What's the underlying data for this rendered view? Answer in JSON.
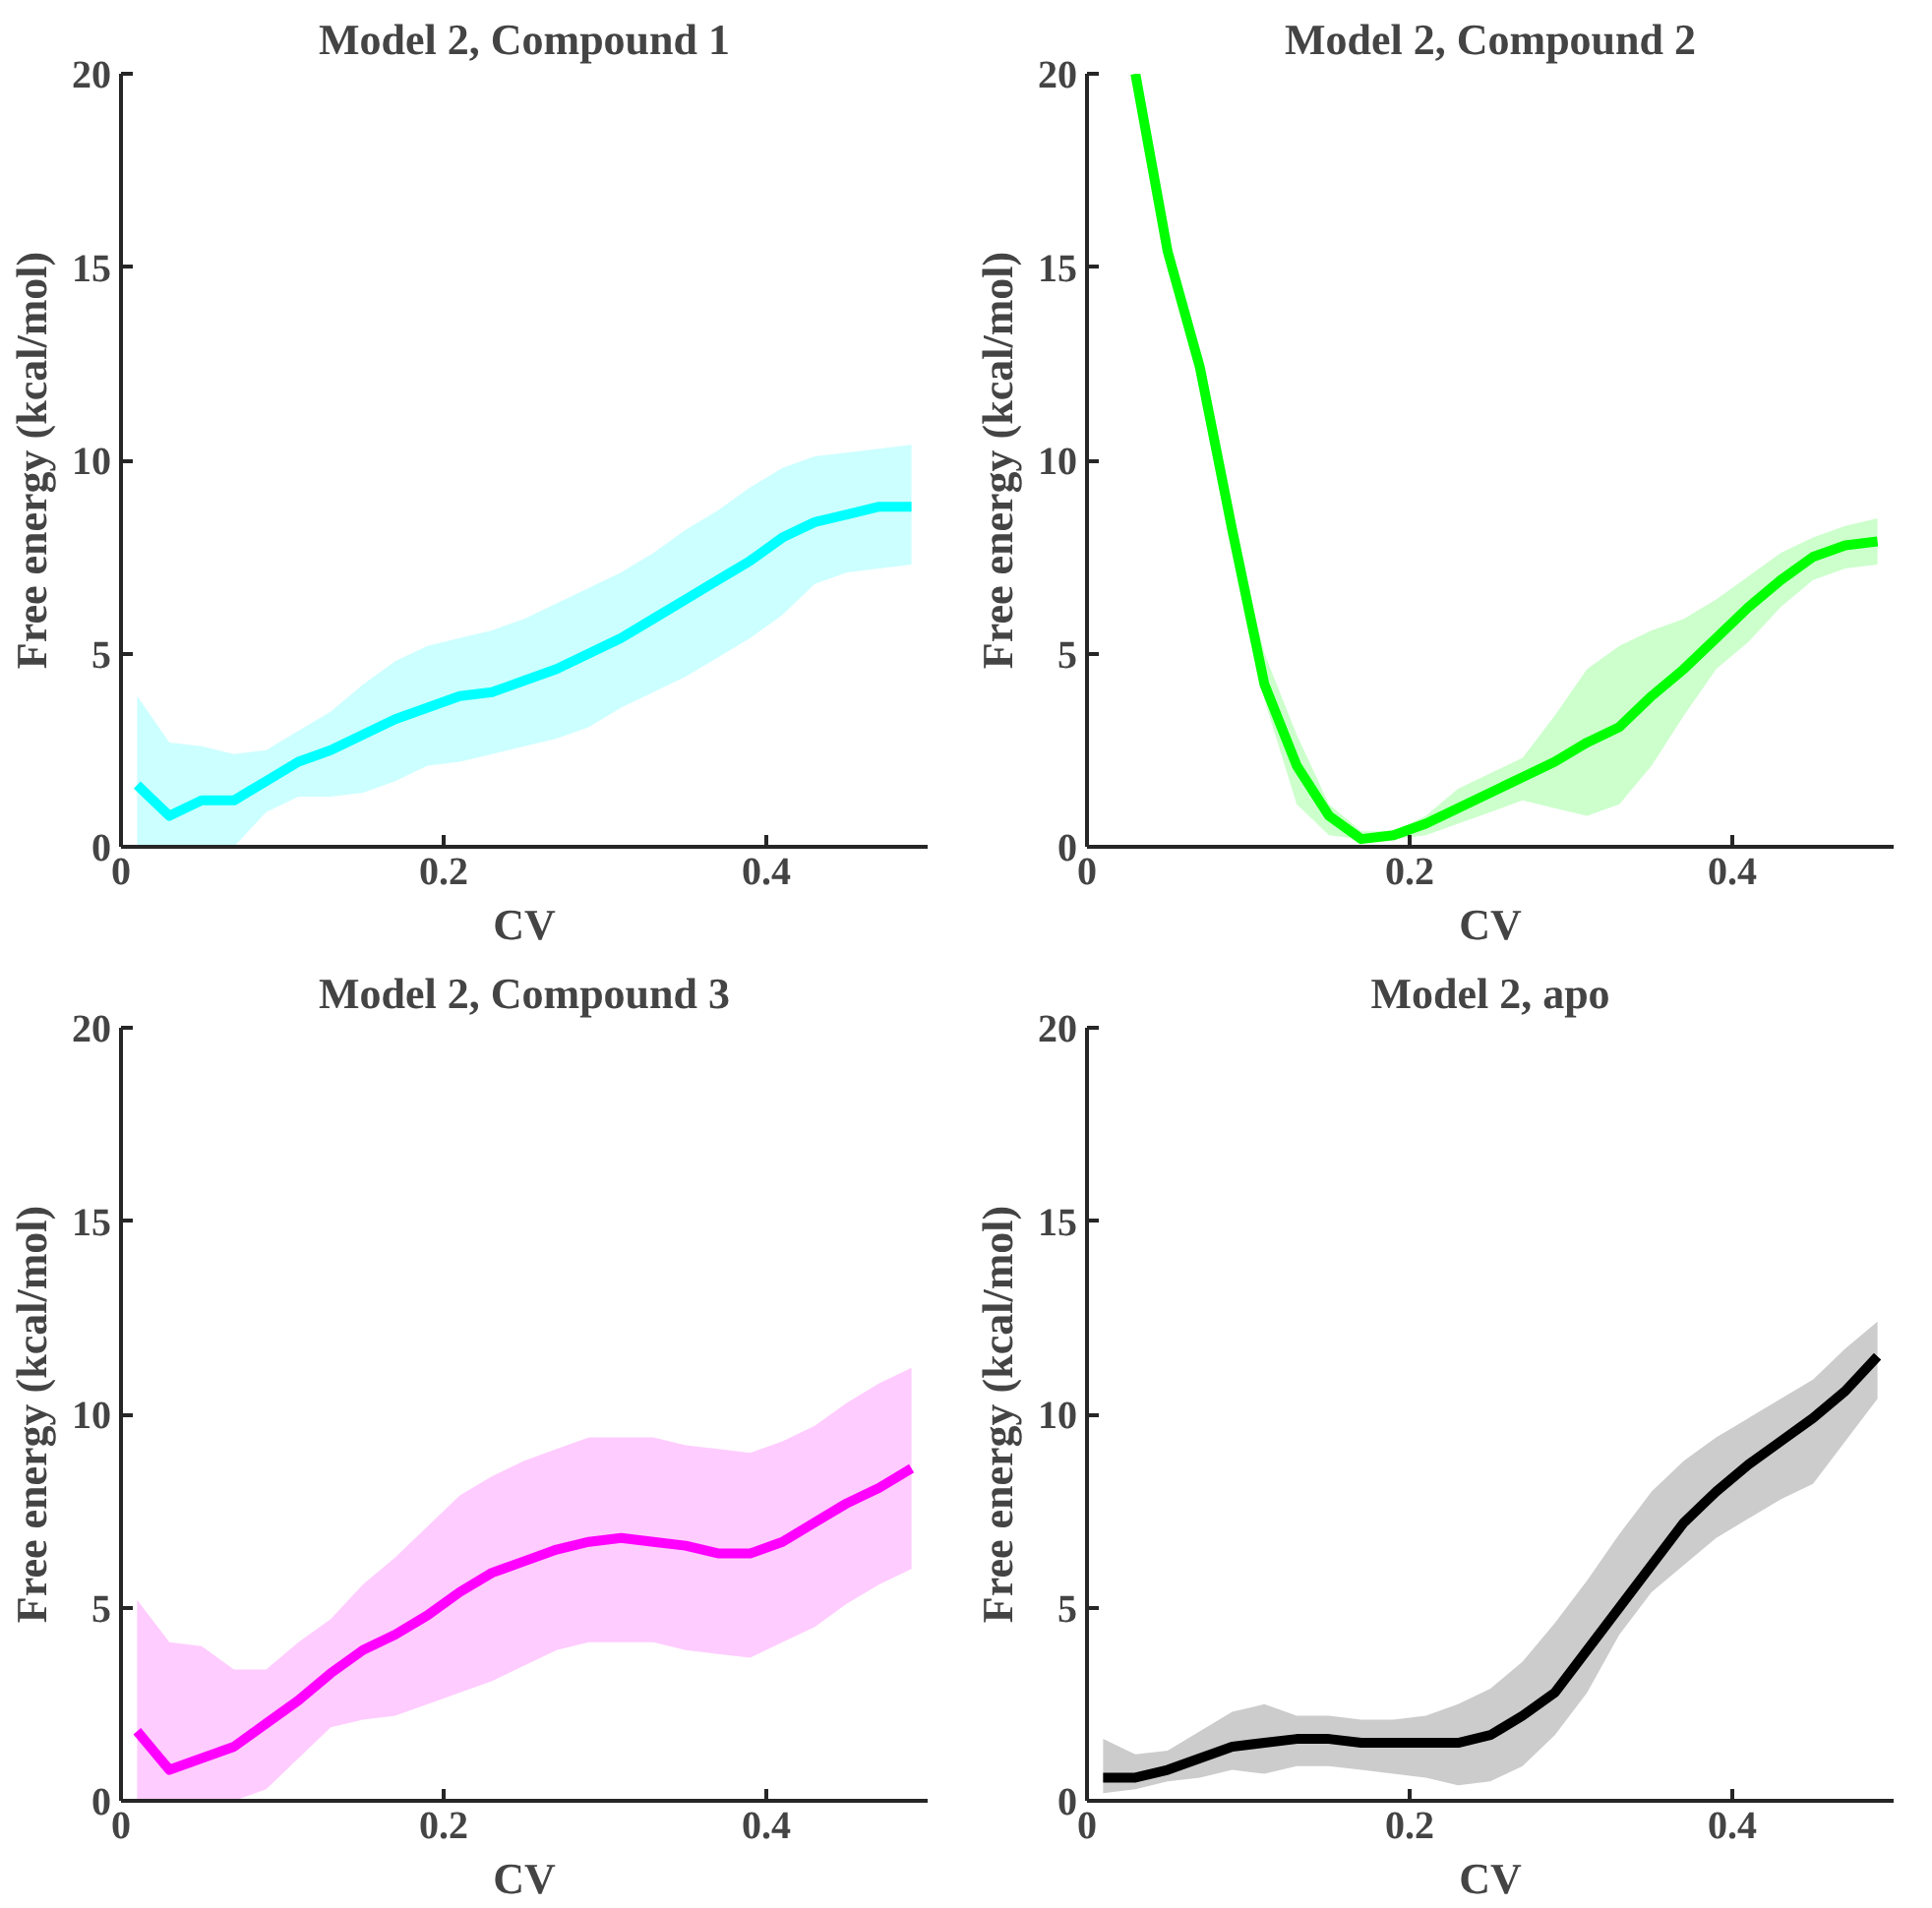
{
  "chart_data": [
    {
      "type": "line",
      "title": "Model 2, Compound 1",
      "xlabel": "CV",
      "ylabel": "Free energy (kcal/mol)",
      "xlim": [
        0,
        0.5
      ],
      "ylim": [
        0,
        20
      ],
      "xticks": [
        0,
        0.2,
        0.4
      ],
      "yticks": [
        0,
        5,
        10,
        15,
        20
      ],
      "grid": false,
      "marker": "none",
      "line_style": "solid",
      "x": [
        0.01,
        0.03,
        0.05,
        0.07,
        0.09,
        0.11,
        0.13,
        0.15,
        0.17,
        0.19,
        0.21,
        0.23,
        0.25,
        0.27,
        0.29,
        0.31,
        0.33,
        0.35,
        0.37,
        0.39,
        0.41,
        0.43,
        0.45,
        0.47,
        0.49
      ],
      "series": [
        {
          "color": "#00ffff",
          "values": [
            1.6,
            0.8,
            1.2,
            1.2,
            1.7,
            2.2,
            2.5,
            2.9,
            3.3,
            3.6,
            3.9,
            4.0,
            4.3,
            4.6,
            5.0,
            5.4,
            5.9,
            6.4,
            6.9,
            7.4,
            8.0,
            8.4,
            8.6,
            8.8,
            8.8
          ],
          "upper": [
            3.9,
            2.7,
            2.6,
            2.4,
            2.5,
            3.0,
            3.5,
            4.2,
            4.8,
            5.2,
            5.4,
            5.6,
            5.9,
            6.3,
            6.7,
            7.1,
            7.6,
            8.2,
            8.7,
            9.3,
            9.8,
            10.1,
            10.2,
            10.3,
            10.4
          ],
          "lower": [
            0,
            0,
            0,
            0,
            0.9,
            1.3,
            1.3,
            1.4,
            1.7,
            2.1,
            2.2,
            2.4,
            2.6,
            2.8,
            3.1,
            3.6,
            4.0,
            4.4,
            4.9,
            5.4,
            6.0,
            6.8,
            7.1,
            7.2,
            7.3
          ]
        }
      ]
    },
    {
      "type": "line",
      "title": "Model 2, Compound 2",
      "xlabel": "CV",
      "ylabel": "Free energy (kcal/mol)",
      "xlim": [
        0,
        0.5
      ],
      "ylim": [
        0,
        20
      ],
      "xticks": [
        0,
        0.2,
        0.4
      ],
      "yticks": [
        0,
        5,
        10,
        15,
        20
      ],
      "grid": false,
      "marker": "none",
      "line_style": "solid",
      "series": [
        {
          "color": "#00ff00",
          "x": [
            0.03,
            0.05,
            0.07,
            0.09,
            0.11,
            0.13,
            0.15,
            0.17,
            0.19,
            0.21,
            0.23,
            0.25,
            0.27,
            0.29,
            0.31,
            0.33,
            0.35,
            0.37,
            0.39,
            0.41,
            0.43,
            0.45,
            0.47,
            0.49
          ],
          "values": [
            20,
            15.4,
            12.4,
            8.2,
            4.2,
            2.1,
            0.8,
            0.2,
            0.3,
            0.6,
            1.0,
            1.4,
            1.8,
            2.2,
            2.7,
            3.1,
            3.9,
            4.6,
            5.4,
            6.2,
            6.9,
            7.5,
            7.8,
            7.9
          ],
          "upper": [
            20,
            15.5,
            12.5,
            8.4,
            5.0,
            2.9,
            1.1,
            0.4,
            0.4,
            0.8,
            1.5,
            1.9,
            2.3,
            3.4,
            4.6,
            5.2,
            5.6,
            5.9,
            6.4,
            7.0,
            7.6,
            8.0,
            8.3,
            8.5
          ],
          "lower": [
            19.8,
            15.3,
            12.2,
            8.0,
            3.8,
            1.1,
            0.3,
            0.2,
            0.2,
            0.3,
            0.6,
            0.9,
            1.2,
            1.0,
            0.8,
            1.1,
            2.1,
            3.4,
            4.6,
            5.3,
            6.2,
            6.9,
            7.2,
            7.3
          ]
        }
      ]
    },
    {
      "type": "line",
      "title": "Model 2, Compound 3",
      "xlabel": "CV",
      "ylabel": "Free energy (kcal/mol)",
      "xlim": [
        0,
        0.5
      ],
      "ylim": [
        0,
        20
      ],
      "xticks": [
        0,
        0.2,
        0.4
      ],
      "yticks": [
        0,
        5,
        10,
        15,
        20
      ],
      "grid": false,
      "marker": "none",
      "line_style": "solid",
      "x": [
        0.01,
        0.03,
        0.05,
        0.07,
        0.09,
        0.11,
        0.13,
        0.15,
        0.17,
        0.19,
        0.21,
        0.23,
        0.25,
        0.27,
        0.29,
        0.31,
        0.33,
        0.35,
        0.37,
        0.39,
        0.41,
        0.43,
        0.45,
        0.47,
        0.49
      ],
      "series": [
        {
          "color": "#ff00ff",
          "values": [
            1.8,
            0.8,
            1.1,
            1.4,
            2.0,
            2.6,
            3.3,
            3.9,
            4.3,
            4.8,
            5.4,
            5.9,
            6.2,
            6.5,
            6.7,
            6.8,
            6.7,
            6.6,
            6.4,
            6.4,
            6.7,
            7.2,
            7.7,
            8.1,
            8.6
          ],
          "upper": [
            5.2,
            4.1,
            4.0,
            3.4,
            3.4,
            4.1,
            4.7,
            5.6,
            6.3,
            7.1,
            7.9,
            8.4,
            8.8,
            9.1,
            9.4,
            9.4,
            9.4,
            9.2,
            9.1,
            9.0,
            9.3,
            9.7,
            10.3,
            10.8,
            11.2
          ],
          "lower": [
            0,
            0,
            0,
            0,
            0.3,
            1.1,
            1.9,
            2.1,
            2.2,
            2.5,
            2.8,
            3.1,
            3.5,
            3.9,
            4.1,
            4.1,
            4.1,
            3.9,
            3.8,
            3.7,
            4.1,
            4.5,
            5.1,
            5.6,
            6.0
          ]
        }
      ]
    },
    {
      "type": "line",
      "title": "Model 2, apo",
      "xlabel": "CV",
      "ylabel": "Free energy (kcal/mol)",
      "xlim": [
        0,
        0.5
      ],
      "ylim": [
        0,
        20
      ],
      "xticks": [
        0,
        0.2,
        0.4
      ],
      "yticks": [
        0,
        5,
        10,
        15,
        20
      ],
      "grid": false,
      "marker": "none",
      "line_style": "solid",
      "x": [
        0.01,
        0.03,
        0.05,
        0.07,
        0.09,
        0.11,
        0.13,
        0.15,
        0.17,
        0.19,
        0.21,
        0.23,
        0.25,
        0.27,
        0.29,
        0.31,
        0.33,
        0.35,
        0.37,
        0.39,
        0.41,
        0.43,
        0.45,
        0.47,
        0.49
      ],
      "series": [
        {
          "color": "#000000",
          "values": [
            0.6,
            0.6,
            0.8,
            1.1,
            1.4,
            1.5,
            1.6,
            1.6,
            1.5,
            1.5,
            1.5,
            1.5,
            1.7,
            2.2,
            2.8,
            3.9,
            5.0,
            6.1,
            7.2,
            8.0,
            8.7,
            9.3,
            9.9,
            10.6,
            11.5
          ],
          "upper": [
            1.6,
            1.2,
            1.3,
            1.8,
            2.3,
            2.5,
            2.2,
            2.2,
            2.1,
            2.1,
            2.2,
            2.5,
            2.9,
            3.6,
            4.6,
            5.7,
            6.9,
            8.0,
            8.8,
            9.4,
            9.9,
            10.4,
            10.9,
            11.7,
            12.4
          ],
          "lower": [
            0.2,
            0.3,
            0.5,
            0.6,
            0.8,
            0.7,
            0.9,
            0.9,
            0.8,
            0.7,
            0.6,
            0.4,
            0.5,
            0.9,
            1.7,
            2.8,
            4.3,
            5.4,
            6.1,
            6.8,
            7.3,
            7.8,
            8.2,
            9.3,
            10.4
          ]
        }
      ]
    }
  ]
}
